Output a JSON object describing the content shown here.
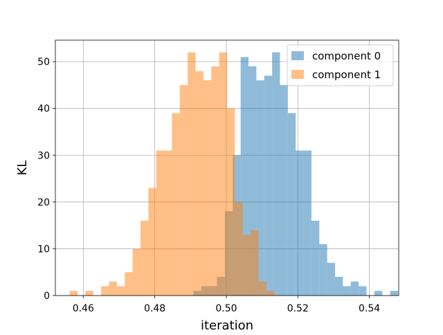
{
  "chart_data": {
    "type": "histogram",
    "title": "",
    "xlabel": "iteration",
    "ylabel": "KL",
    "xlim": [
      0.4522,
      0.5482
    ],
    "ylim": [
      0,
      54.6
    ],
    "xticks": [
      "0.46",
      "0.48",
      "0.50",
      "0.52",
      "0.54"
    ],
    "xtick_values": [
      0.46,
      0.48,
      0.5,
      0.52,
      0.54
    ],
    "yticks": [
      "0",
      "10",
      "20",
      "30",
      "40",
      "50"
    ],
    "ytick_values": [
      0,
      10,
      20,
      30,
      40,
      50
    ],
    "grid": true,
    "legend_position": "top-right",
    "bin_width": 0.0022,
    "series": [
      {
        "name": "component 0",
        "color": "#1f77b4",
        "opacity": 0.5,
        "bin_start": 0.4908,
        "counts": [
          1,
          2,
          2,
          4,
          18,
          30,
          51,
          49,
          46,
          47,
          52,
          45,
          39,
          31,
          31,
          16,
          11,
          7,
          4,
          2,
          3,
          2,
          0,
          1,
          0,
          1
        ]
      },
      {
        "name": "component 1",
        "color": "#ff7f0e",
        "opacity": 0.5,
        "bin_start": 0.4562,
        "counts": [
          1,
          0,
          1,
          0,
          2,
          3,
          2,
          5,
          10,
          16,
          23,
          31,
          31,
          39,
          45,
          52,
          48,
          46,
          49,
          52,
          40,
          20,
          13,
          14,
          3,
          1
        ]
      }
    ]
  }
}
